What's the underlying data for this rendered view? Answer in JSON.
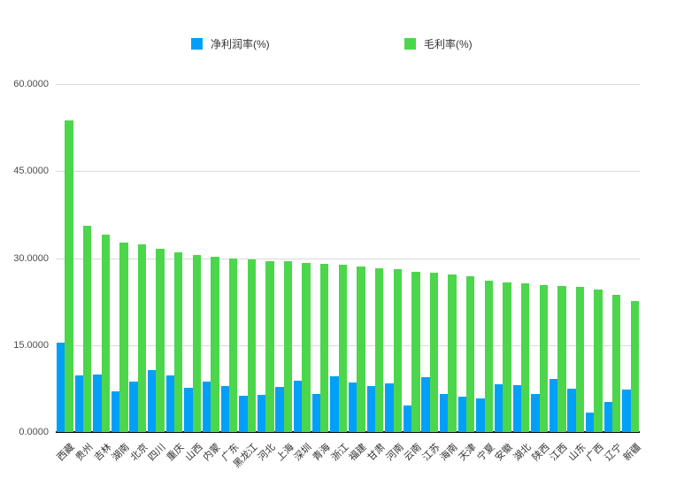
{
  "chart_data": {
    "type": "bar",
    "title": "",
    "xlabel": "",
    "ylabel": "",
    "ylim": [
      0,
      60
    ],
    "grid": true,
    "legend_position": "top",
    "y_tick_labels": [
      "0.0000",
      "15.0000",
      "30.0000",
      "45.0000",
      "60.0000"
    ],
    "y_tick_values": [
      0,
      15,
      30,
      45,
      60
    ],
    "categories": [
      "西藏",
      "贵州",
      "吉林",
      "湖南",
      "北京",
      "四川",
      "重庆",
      "山西",
      "内蒙",
      "广东",
      "黑龙江",
      "河北",
      "上海",
      "深圳",
      "青海",
      "浙江",
      "福建",
      "甘肃",
      "河南",
      "云南",
      "江苏",
      "海南",
      "天津",
      "宁夏",
      "安徽",
      "湖北",
      "陕西",
      "江西",
      "山东",
      "广西",
      "辽宁",
      "新疆"
    ],
    "series": [
      {
        "name": "净利润率(%)",
        "color": "#00a0f9",
        "values": [
          15.4,
          9.7,
          10.0,
          7.0,
          8.7,
          10.7,
          9.8,
          7.6,
          8.7,
          8.0,
          6.3,
          6.4,
          7.8,
          8.8,
          6.5,
          9.6,
          8.6,
          8.0,
          8.4,
          4.6,
          9.5,
          6.6,
          6.1,
          5.8,
          8.2,
          8.1,
          6.5,
          9.2,
          7.5,
          3.4,
          5.2,
          7.4
        ]
      },
      {
        "name": "毛利率(%)",
        "color": "#4cd64c",
        "values": [
          53.8,
          35.5,
          34.1,
          32.7,
          32.3,
          31.6,
          31.0,
          30.6,
          30.3,
          30.0,
          29.7,
          29.5,
          29.4,
          29.2,
          29.0,
          28.8,
          28.6,
          28.3,
          28.1,
          27.7,
          27.5,
          27.2,
          26.9,
          26.1,
          25.8,
          25.6,
          25.4,
          25.2,
          25.0,
          24.6,
          23.6,
          22.6
        ]
      }
    ]
  }
}
